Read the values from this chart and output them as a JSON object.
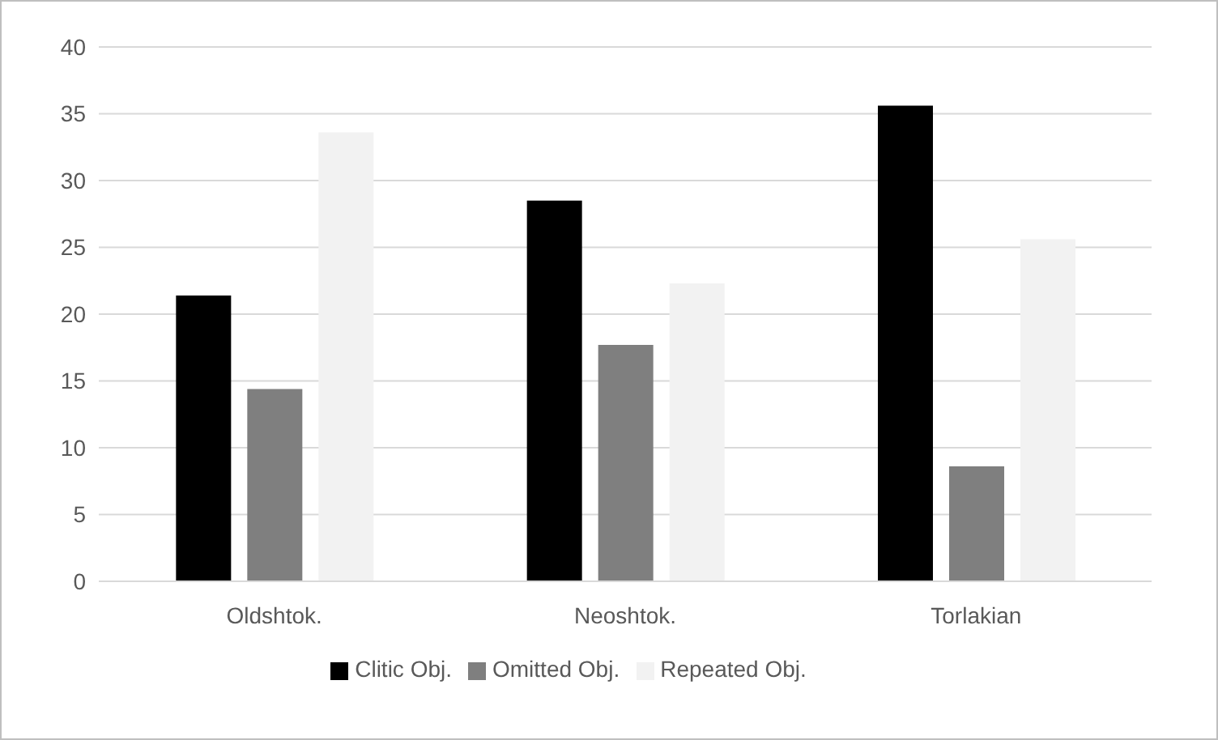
{
  "chart_data": {
    "type": "bar",
    "categories": [
      "Oldshtok.",
      "Neoshtok.",
      "Torlakian"
    ],
    "series": [
      {
        "name": "Clitic Obj.",
        "color": "#000000",
        "values": [
          21.4,
          28.5,
          35.6
        ]
      },
      {
        "name": "Omitted Obj.",
        "color": "#7f7f7f",
        "values": [
          14.4,
          17.7,
          8.6
        ]
      },
      {
        "name": "Repeated Obj.",
        "color": "#f2f2f2",
        "values": [
          33.6,
          22.3,
          25.6
        ]
      }
    ],
    "ylim": [
      0,
      40
    ],
    "yticks": [
      0,
      5,
      10,
      15,
      20,
      25,
      30,
      35,
      40
    ],
    "grid": "y",
    "legend": "bottom"
  }
}
